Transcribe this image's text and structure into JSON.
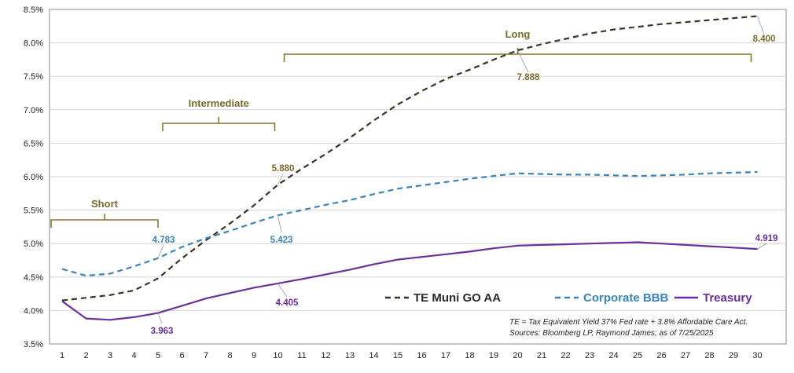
{
  "chart_data": {
    "type": "line",
    "x": [
      1,
      2,
      3,
      4,
      5,
      6,
      7,
      8,
      9,
      10,
      11,
      12,
      13,
      14,
      15,
      16,
      17,
      18,
      19,
      20,
      21,
      22,
      23,
      24,
      25,
      26,
      27,
      28,
      29,
      30
    ],
    "ylim": [
      3.5,
      8.5
    ],
    "yticks": [
      "3.5%",
      "4.0%",
      "4.5%",
      "5.0%",
      "5.5%",
      "6.0%",
      "6.5%",
      "7.0%",
      "7.5%",
      "8.0%",
      "8.5%"
    ],
    "grid": "horizontal",
    "series": [
      {
        "name": "TE Muni GO AA",
        "color": "#3a3320",
        "dash": "dashed",
        "values": [
          4.15,
          4.19,
          4.23,
          4.3,
          4.48,
          4.78,
          5.05,
          5.3,
          5.57,
          5.88,
          6.12,
          6.34,
          6.58,
          6.84,
          7.08,
          7.28,
          7.46,
          7.6,
          7.75,
          7.888,
          7.98,
          8.06,
          8.14,
          8.2,
          8.24,
          8.28,
          8.31,
          8.34,
          8.37,
          8.4
        ]
      },
      {
        "name": "Corporate BBB",
        "color": "#3b82b8",
        "dash": "dashed",
        "values": [
          4.62,
          4.52,
          4.55,
          4.66,
          4.783,
          4.95,
          5.08,
          5.19,
          5.31,
          5.423,
          5.5,
          5.58,
          5.65,
          5.74,
          5.82,
          5.87,
          5.92,
          5.97,
          6.01,
          6.05,
          6.04,
          6.03,
          6.03,
          6.02,
          6.01,
          6.02,
          6.03,
          6.05,
          6.06,
          6.07
        ]
      },
      {
        "name": "Treasury",
        "color": "#6a2e9e",
        "dash": "solid",
        "values": [
          4.14,
          3.88,
          3.86,
          3.9,
          3.963,
          4.07,
          4.18,
          4.26,
          4.34,
          4.405,
          4.47,
          4.54,
          4.61,
          4.69,
          4.76,
          4.8,
          4.84,
          4.88,
          4.93,
          4.97,
          4.98,
          4.99,
          5.0,
          5.01,
          5.02,
          5.0,
          4.98,
          4.96,
          4.94,
          4.919
        ]
      }
    ],
    "data_labels": [
      {
        "series": 0,
        "x": 10,
        "text": "5.880"
      },
      {
        "series": 0,
        "x": 20,
        "text": "7.888"
      },
      {
        "series": 0,
        "x": 30,
        "text": "8.400"
      },
      {
        "series": 1,
        "x": 5,
        "text": "4.783"
      },
      {
        "series": 1,
        "x": 10,
        "text": "5.423"
      },
      {
        "series": 2,
        "x": 5,
        "text": "3.963"
      },
      {
        "series": 2,
        "x": 10,
        "text": "4.405"
      },
      {
        "series": 2,
        "x": 30,
        "text": "4.919"
      }
    ],
    "groups": [
      {
        "label": "Short",
        "from": 1,
        "to": 5
      },
      {
        "label": "Intermediate",
        "from": 5,
        "to": 10
      },
      {
        "label": "Long",
        "from": 10,
        "to": 30
      }
    ],
    "legend": "bottom-right",
    "notes": [
      "TE = Tax Equivalent Yield 37%  Fed rate + 3.8% Affordable Care Act.",
      "Sources: Bloomberg LP, Raymond James; as of  7/25/2025"
    ]
  }
}
